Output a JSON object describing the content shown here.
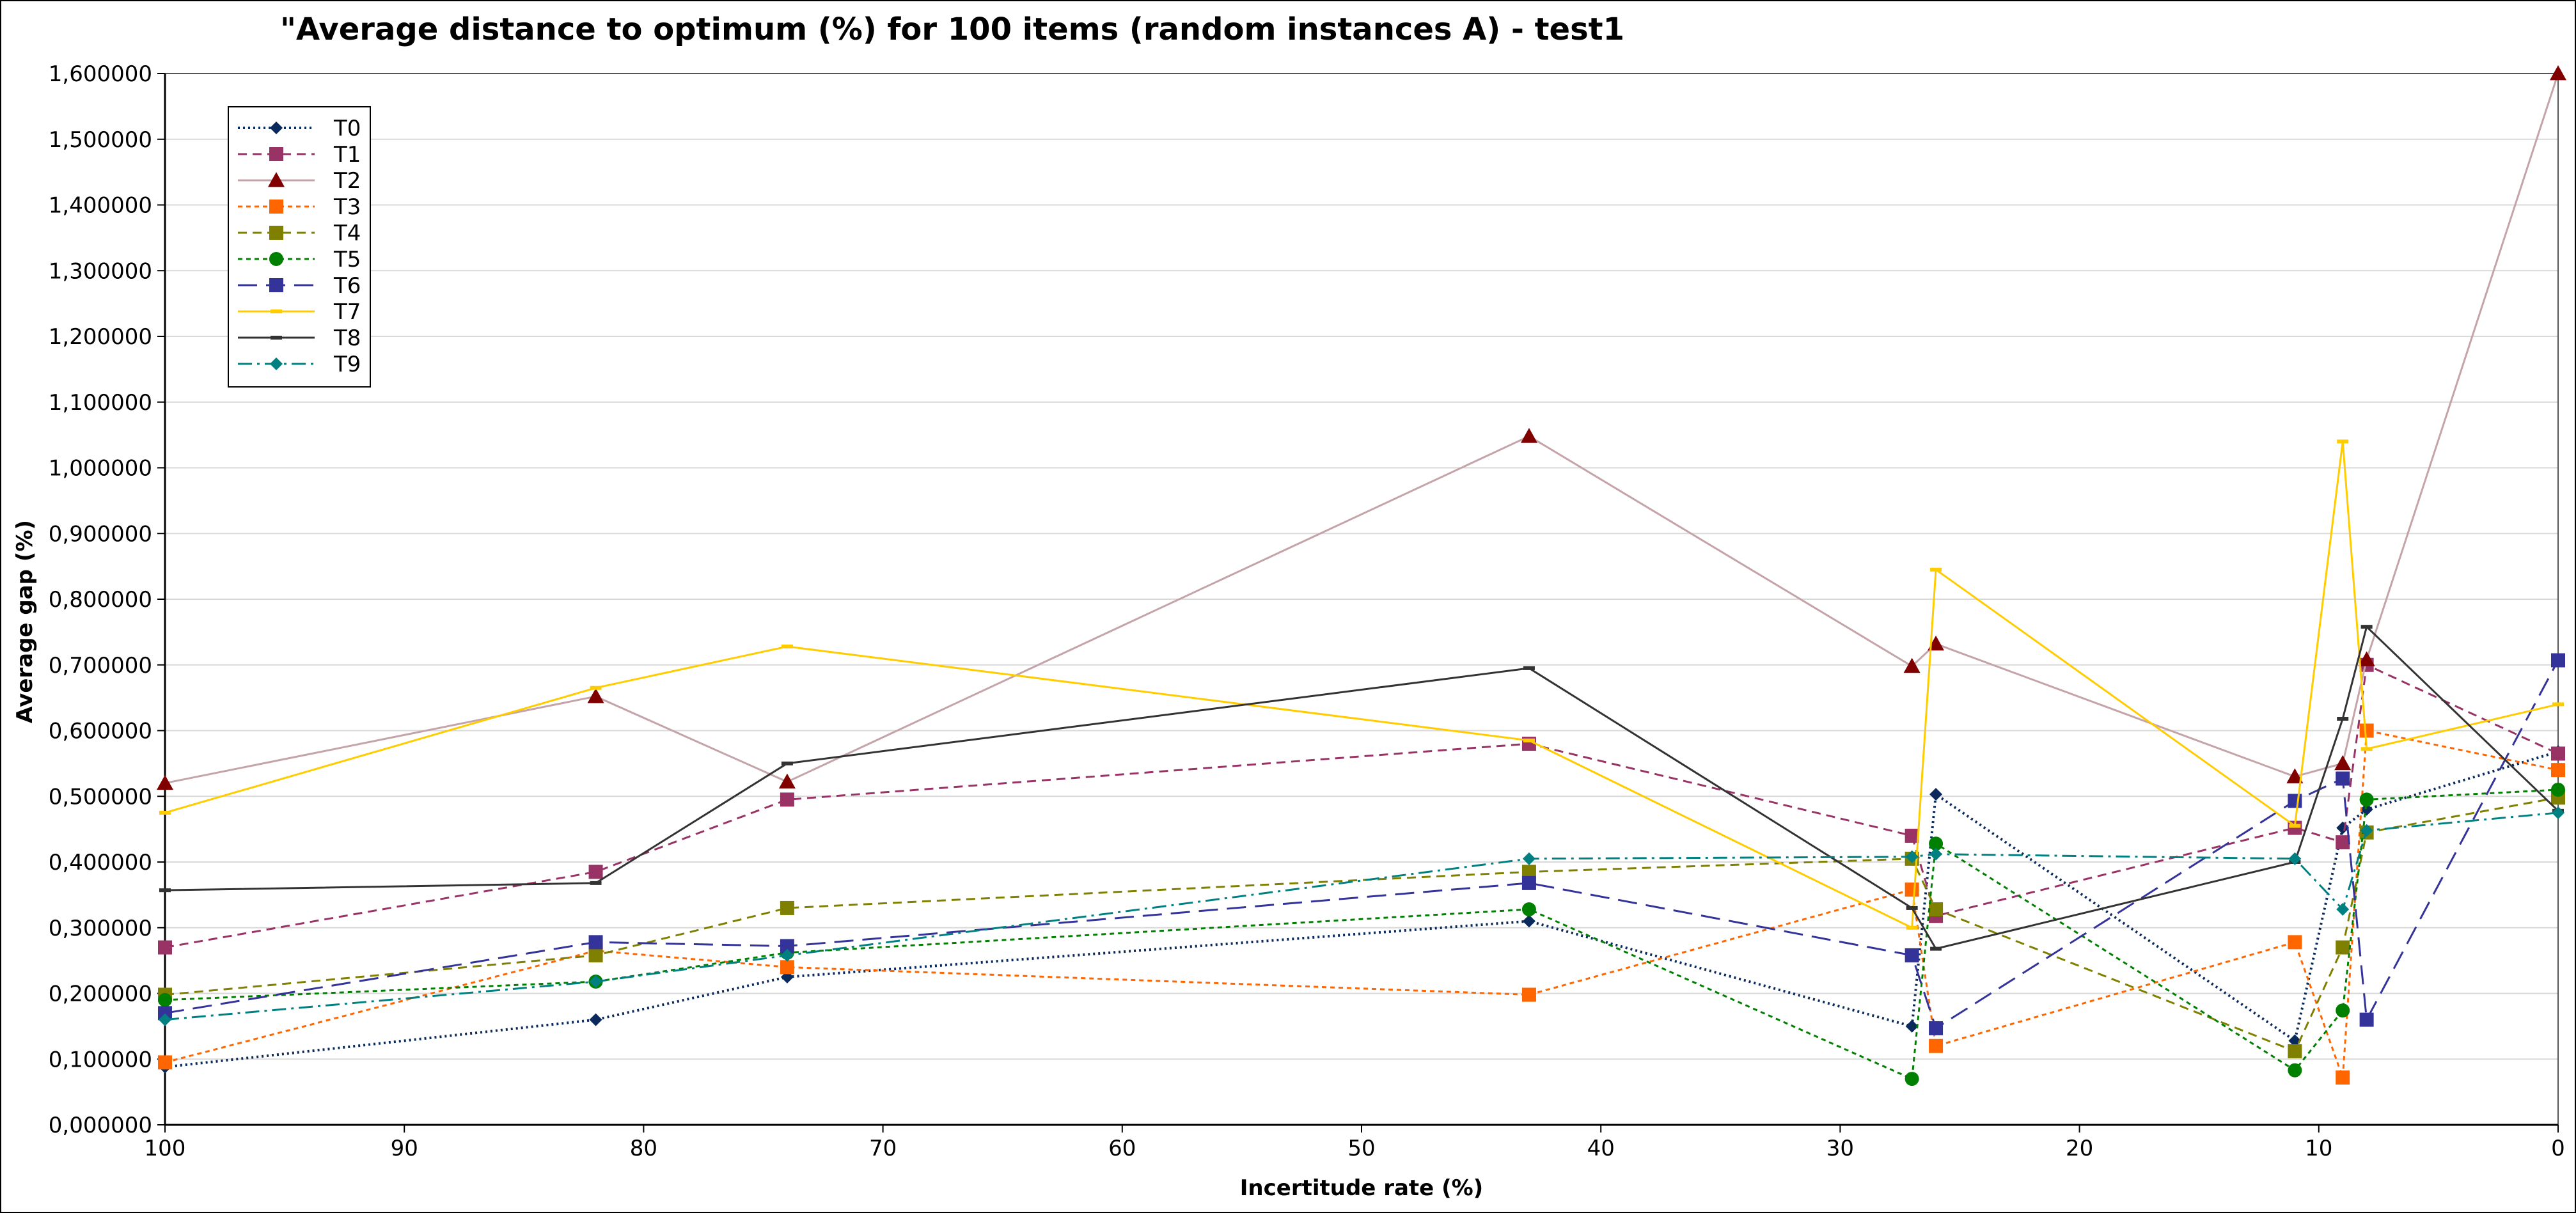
{
  "chart_data": {
    "type": "line",
    "title": "\"Average distance to optimum (%) for 100 items (random instances A) - test1",
    "xlabel": "Incertitude rate (%)",
    "ylabel": "Average gap (%)",
    "xlim": [
      100,
      0
    ],
    "ylim": [
      0,
      1.6
    ],
    "x_ticks": [
      100,
      90,
      80,
      70,
      60,
      50,
      40,
      30,
      20,
      10,
      0
    ],
    "x_tick_labels": [
      "100",
      "90",
      "80",
      "70",
      "60",
      "50",
      "40",
      "30",
      "20",
      "10",
      "0"
    ],
    "y_ticks": [
      0,
      0.1,
      0.2,
      0.3,
      0.4,
      0.5,
      0.6,
      0.7,
      0.8,
      0.9,
      1.0,
      1.1,
      1.2,
      1.3,
      1.4,
      1.5,
      1.6
    ],
    "y_tick_labels": [
      "0,000000",
      "0,100000",
      "0,200000",
      "0,300000",
      "0,400000",
      "0,500000",
      "0,600000",
      "0,700000",
      "0,800000",
      "0,900000",
      "1,000000",
      "1,100000",
      "1,200000",
      "1,300000",
      "1,400000",
      "1,500000",
      "1,600000"
    ],
    "grid": "horizontal",
    "legend_position": "top-left",
    "x": [
      100,
      82,
      74,
      43,
      27,
      26,
      11,
      9,
      8,
      0
    ],
    "series": [
      {
        "name": "T0",
        "color": "#0b2a5c",
        "dash": "dotted",
        "marker": "diamond",
        "values": [
          0.088,
          0.16,
          0.225,
          0.31,
          0.15,
          0.503,
          0.128,
          0.452,
          0.48,
          0.568
        ]
      },
      {
        "name": "T1",
        "color": "#993366",
        "dash": "dashed",
        "marker": "square",
        "values": [
          0.27,
          0.385,
          0.495,
          0.58,
          0.44,
          0.318,
          0.452,
          0.43,
          0.7,
          0.565
        ]
      },
      {
        "name": "T2",
        "color": "#c4a4a8",
        "dash": "solid",
        "marker": "triangle",
        "marker_color": "#800000",
        "values": [
          0.52,
          0.652,
          0.522,
          1.048,
          0.698,
          0.732,
          0.53,
          0.55,
          0.708,
          1.6
        ]
      },
      {
        "name": "T3",
        "color": "#ff6600",
        "dash": "fine-dashed",
        "marker": "square",
        "values": [
          0.095,
          0.265,
          0.24,
          0.198,
          0.358,
          0.12,
          0.278,
          0.072,
          0.6,
          0.54
        ]
      },
      {
        "name": "T4",
        "color": "#808000",
        "dash": "dashed",
        "marker": "square",
        "values": [
          0.198,
          0.258,
          0.33,
          0.385,
          0.405,
          0.328,
          0.112,
          0.27,
          0.445,
          0.498
        ]
      },
      {
        "name": "T5",
        "color": "#008000",
        "dash": "fine-dashed",
        "marker": "circle",
        "values": [
          0.19,
          0.218,
          0.262,
          0.328,
          0.07,
          0.428,
          0.083,
          0.174,
          0.495,
          0.51
        ]
      },
      {
        "name": "T6",
        "color": "#333399",
        "dash": "long-dashed",
        "marker": "square",
        "values": [
          0.17,
          0.278,
          0.272,
          0.368,
          0.258,
          0.147,
          0.493,
          0.527,
          0.16,
          0.707
        ]
      },
      {
        "name": "T7",
        "color": "#ffcc00",
        "dash": "solid",
        "marker": "dash",
        "values": [
          0.475,
          0.665,
          0.728,
          0.585,
          0.3,
          0.845,
          0.455,
          1.04,
          0.572,
          0.64
        ]
      },
      {
        "name": "T8",
        "color": "#333333",
        "dash": "solid",
        "marker": "dash",
        "values": [
          0.357,
          0.368,
          0.55,
          0.695,
          0.33,
          0.268,
          0.4,
          0.618,
          0.758,
          0.478
        ]
      },
      {
        "name": "T9",
        "color": "#008080",
        "dash": "dash-dot",
        "marker": "diamond",
        "values": [
          0.16,
          0.218,
          0.258,
          0.405,
          0.408,
          0.412,
          0.405,
          0.328,
          0.448,
          0.475
        ]
      }
    ]
  }
}
